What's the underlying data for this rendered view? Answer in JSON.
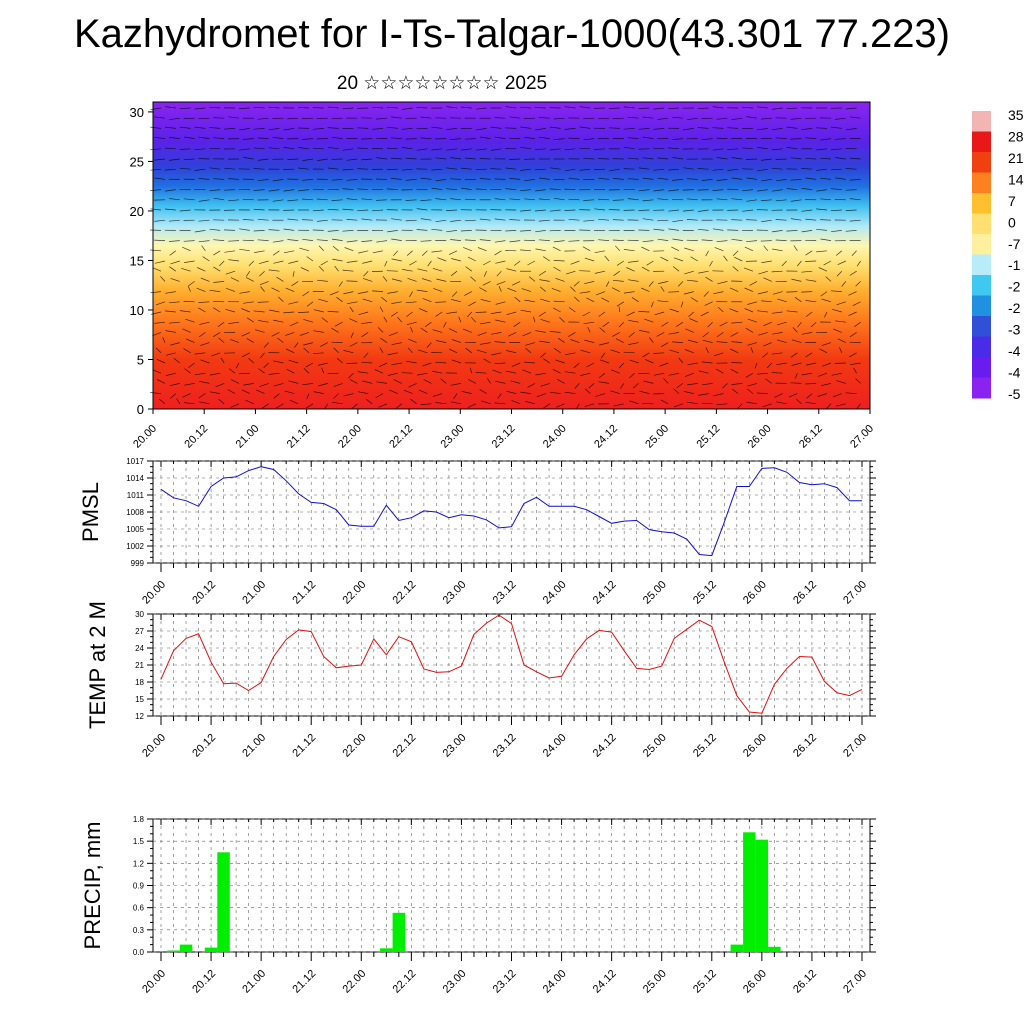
{
  "page": {
    "title": "Kazhydromet for I-Ts-Talgar-1000(43.301 77.223)",
    "subtitle": "20 ☆☆☆☆☆☆☆☆ 2025"
  },
  "time_labels": [
    "20.00",
    "20.12",
    "21.00",
    "21.12",
    "22.00",
    "22.12",
    "23.00",
    "23.12",
    "24.00",
    "24.12",
    "25.00",
    "25.12",
    "26.00",
    "26.12",
    "27.00"
  ],
  "chart_data": [
    {
      "type": "heatmap",
      "name_hint": "temperature cross-section with wind barbs",
      "x_categories": [
        "20.00",
        "20.12",
        "21.00",
        "21.12",
        "22.00",
        "22.12",
        "23.00",
        "23.12",
        "24.00",
        "24.12",
        "25.00",
        "25.12",
        "26.00",
        "26.12",
        "27.00"
      ],
      "y_ticks": [
        0,
        5,
        10,
        15,
        20,
        25,
        30
      ],
      "ylim": [
        0,
        31
      ],
      "colorbar_labels": [
        "35",
        "28",
        "21",
        "14",
        "7",
        "0",
        "-7",
        "-1",
        "-2",
        "-2",
        "-3",
        "-4",
        "-4",
        "-5"
      ],
      "colorbar_colors": [
        "#f4b4b4",
        "#e81818",
        "#f04010",
        "#ff8020",
        "#ffc030",
        "#ffe070",
        "#fff0a0",
        "#b8ecf8",
        "#40c8f0",
        "#2090e0",
        "#3050d8",
        "#4a2ce8",
        "#6a1cf0",
        "#8a22f0"
      ],
      "layer_colors": [
        {
          "z": 0,
          "color": "#ee2020"
        },
        {
          "z": 5,
          "color": "#f23a12"
        },
        {
          "z": 9,
          "color": "#ff7a1c"
        },
        {
          "z": 12,
          "color": "#ffb030"
        },
        {
          "z": 14.5,
          "color": "#ffe070"
        },
        {
          "z": 16.5,
          "color": "#fff6b0"
        },
        {
          "z": 18.5,
          "color": "#aee8f8"
        },
        {
          "z": 20.5,
          "color": "#40c0f0"
        },
        {
          "z": 22.5,
          "color": "#2070e0"
        },
        {
          "z": 24.5,
          "color": "#3040d8"
        },
        {
          "z": 27,
          "color": "#5a22e8"
        },
        {
          "z": 31,
          "color": "#8a24f0"
        }
      ]
    },
    {
      "type": "line",
      "ylabel": "PMSL",
      "ylim": [
        999,
        1017
      ],
      "y_ticks": [
        999,
        1002,
        1005,
        1008,
        1011,
        1014,
        1017
      ],
      "color": "#1010d0",
      "x_step_hours": 3,
      "x_start": "20.00",
      "values": [
        1012,
        1010.5,
        1010,
        1009,
        1012.5,
        1014,
        1014.2,
        1015.3,
        1016,
        1015.5,
        1013.5,
        1011.2,
        1009.7,
        1009.5,
        1008.4,
        1005.7,
        1005.5,
        1005.5,
        1009.2,
        1006.5,
        1007,
        1008.2,
        1008,
        1007,
        1007.5,
        1007.3,
        1006.6,
        1005.2,
        1005.4,
        1009.5,
        1010.6,
        1009,
        1009,
        1009,
        1008.4,
        1007.2,
        1006,
        1006.4,
        1006.5,
        1004.9,
        1004.5,
        1004.3,
        1003.2,
        1000.5,
        1000.3,
        1006.2,
        1012.5,
        1012.5,
        1015.7,
        1015.8,
        1015,
        1013.2,
        1012.8,
        1013,
        1012.3,
        1010,
        1010
      ]
    },
    {
      "type": "line",
      "ylabel": "TEMP at 2 M",
      "ylim": [
        12,
        30
      ],
      "y_ticks": [
        12,
        15,
        18,
        21,
        24,
        27,
        30
      ],
      "color": "#e01010",
      "x_step_hours": 3,
      "x_start": "20.00",
      "values": [
        18.5,
        23.5,
        25.7,
        26.5,
        21.5,
        17.7,
        17.8,
        16.5,
        17.9,
        22.5,
        25.5,
        27.2,
        26.9,
        22.5,
        20.5,
        20.8,
        21,
        25.6,
        22.8,
        26,
        25.1,
        20.3,
        19.7,
        19.8,
        20.8,
        26.4,
        28.4,
        29.8,
        28.3,
        21,
        19.8,
        18.7,
        19,
        22.8,
        25.6,
        27.1,
        26.8,
        23.5,
        20.4,
        20.2,
        20.8,
        25.7,
        27.3,
        28.9,
        27.8,
        21.5,
        15.6,
        12.7,
        12.5,
        17.6,
        20.4,
        22.5,
        22.4,
        18.1,
        16.1,
        15.6,
        16.7
      ]
    },
    {
      "type": "bar",
      "ylabel": "PRECIP, mm",
      "ylim": [
        0,
        1.8
      ],
      "y_ticks": [
        "0.0",
        "0.3",
        "0.6",
        "0.9",
        "1.2",
        "1.5",
        "1.8"
      ],
      "color": "#00ee00",
      "x_step_hours": 3,
      "x_start": "20.00",
      "values": [
        0,
        0.02,
        0.1,
        0,
        0.06,
        1.35,
        0,
        0,
        0,
        0,
        0,
        0,
        0,
        0,
        0,
        0,
        0,
        0,
        0.05,
        0.53,
        0,
        0,
        0,
        0,
        0,
        0,
        0,
        0,
        0,
        0,
        0,
        0,
        0,
        0,
        0,
        0,
        0,
        0,
        0,
        0,
        0,
        0,
        0,
        0,
        0,
        0,
        0.1,
        1.62,
        1.52,
        0.07,
        0,
        0,
        0,
        0,
        0,
        0,
        0
      ]
    }
  ]
}
